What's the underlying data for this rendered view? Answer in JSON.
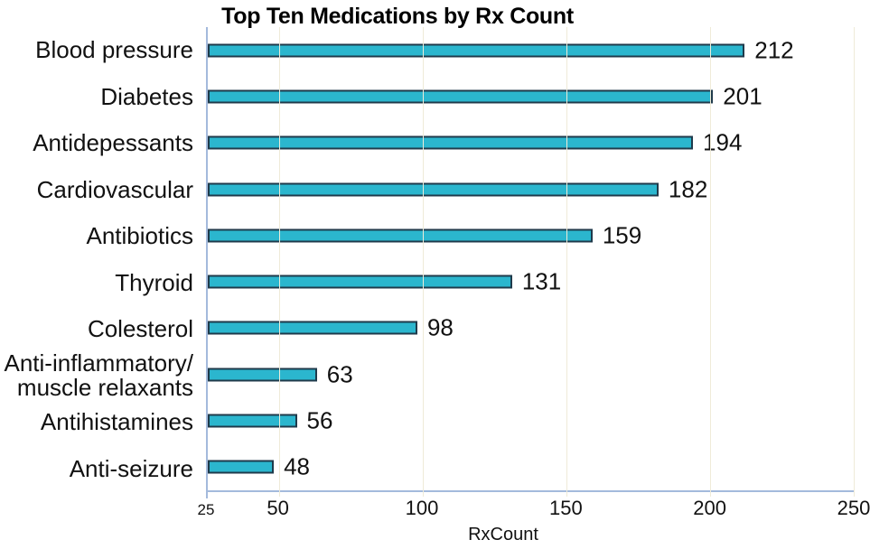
{
  "chart_data": {
    "type": "bar",
    "orientation": "horizontal",
    "title": "Top Ten Medications by Rx Count",
    "xlabel": "RxCount",
    "categories": [
      "Blood pressure",
      "Diabetes",
      "Antidepessants",
      "Cardiovascular",
      "Antibiotics",
      "Thyroid",
      "Colesterol",
      "Anti-inflammatory/\nmuscle relaxants",
      "Antihistamines",
      "Anti-seizure"
    ],
    "values": [
      212,
      201,
      194,
      182,
      159,
      131,
      98,
      63,
      56,
      48
    ],
    "xlim": [
      25,
      250
    ],
    "xticks": [
      25,
      50,
      100,
      150,
      200,
      250
    ],
    "grid": true,
    "legend": false,
    "data_labels": true,
    "colors": {
      "bar_fill": "#2bb6ce",
      "bar_border": "#1f3a4b",
      "axis_line": "#a4badc",
      "gridline": "#efebd8",
      "text": "#111111"
    }
  }
}
